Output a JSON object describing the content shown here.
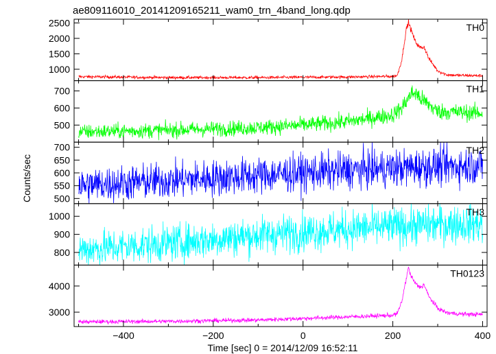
{
  "chart_data": {
    "type": "line",
    "title": "ae809116010_20141209165211_wam0_trn_4band_long.qdp",
    "xlabel": "Time [sec] 0 = 2014/12/09 16:52:11",
    "ylabel": "Counts/sec",
    "xlim": [
      -510,
      410
    ],
    "x_ticks": [
      -400,
      -200,
      0,
      200,
      400
    ],
    "grid": false,
    "panels": [
      {
        "name": "TH0",
        "color": "#ff0000",
        "ylim": [
          630,
          2620
        ],
        "y_ticks": [
          1000,
          1500,
          2000,
          2500
        ],
        "noise": 25,
        "series": {
          "x": [
            -500,
            -300,
            -100,
            0,
            100,
            200,
            210,
            220,
            230,
            235,
            240,
            250,
            260,
            270,
            280,
            300,
            320,
            350,
            400
          ],
          "y": [
            760,
            730,
            730,
            740,
            750,
            770,
            800,
            1300,
            2300,
            2520,
            2300,
            1900,
            1700,
            1720,
            1350,
            950,
            820,
            800,
            790
          ]
        }
      },
      {
        "name": "TH1",
        "color": "#00ff00",
        "ylim": [
          400,
          760
        ],
        "y_ticks": [
          500,
          600,
          700
        ],
        "noise": 22,
        "series": {
          "x": [
            -500,
            -300,
            -100,
            0,
            100,
            200,
            220,
            240,
            250,
            260,
            280,
            300,
            400
          ],
          "y": [
            460,
            470,
            485,
            500,
            520,
            560,
            600,
            680,
            690,
            660,
            620,
            580,
            570
          ]
        }
      },
      {
        "name": "TH2",
        "color": "#0000ff",
        "ylim": [
          480,
          720
        ],
        "y_ticks": [
          500,
          550,
          600,
          650,
          700
        ],
        "noise": 35,
        "series": {
          "x": [
            -500,
            -300,
            -100,
            100,
            300,
            400
          ],
          "y": [
            550,
            570,
            590,
            610,
            625,
            630
          ]
        }
      },
      {
        "name": "TH3",
        "color": "#00ffff",
        "ylim": [
          730,
          1070
        ],
        "y_ticks": [
          800,
          900,
          1000
        ],
        "noise": 50,
        "series": {
          "x": [
            -500,
            -300,
            -100,
            100,
            300,
            400
          ],
          "y": [
            815,
            850,
            895,
            930,
            955,
            960
          ]
        }
      },
      {
        "name": "TH0123",
        "color": "#ff00ff",
        "ylim": [
          2450,
          4800
        ],
        "y_ticks": [
          3000,
          4000
        ],
        "noise": 40,
        "series": {
          "x": [
            -500,
            -300,
            -100,
            0,
            100,
            200,
            210,
            220,
            230,
            235,
            240,
            250,
            260,
            270,
            280,
            300,
            320,
            350,
            400
          ],
          "y": [
            2630,
            2650,
            2700,
            2760,
            2820,
            2880,
            2950,
            3400,
            4300,
            4700,
            4400,
            4100,
            3950,
            4050,
            3600,
            3150,
            2980,
            2930,
            2910
          ]
        }
      }
    ]
  }
}
